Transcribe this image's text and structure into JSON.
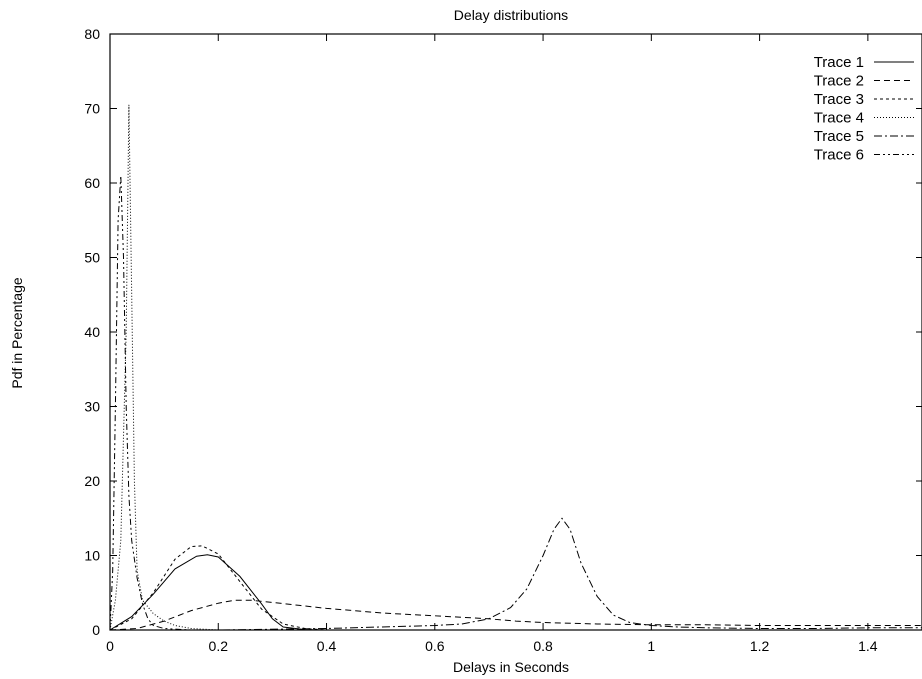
{
  "chart_data": {
    "type": "line",
    "title": "Delay distributions",
    "xlabel": "Delays in Seconds",
    "ylabel": "Pdf in Percentage",
    "xlim": [
      0,
      1.5
    ],
    "ylim": [
      0,
      80
    ],
    "x_ticks": [
      0,
      0.2,
      0.4,
      0.6,
      0.8,
      1,
      1.2,
      1.4
    ],
    "x_tick_labels": [
      "0",
      "0.2",
      "0.4",
      "0.6",
      "0.8",
      "1",
      "1.2",
      "1.4"
    ],
    "y_ticks": [
      0,
      10,
      20,
      30,
      40,
      50,
      60,
      70,
      80
    ],
    "y_tick_labels": [
      "0",
      "10",
      "20",
      "30",
      "40",
      "50",
      "60",
      "70",
      "80"
    ],
    "grid": false,
    "legend_position": "top-right",
    "series": [
      {
        "name": "Trace 1",
        "dash": "none",
        "x": [
          0,
          0.04,
          0.08,
          0.12,
          0.16,
          0.18,
          0.2,
          0.24,
          0.28,
          0.3,
          0.32,
          0.36,
          0.4,
          1.5
        ],
        "y": [
          0,
          1.8,
          4.8,
          8.2,
          9.9,
          10.1,
          9.8,
          7.2,
          3.5,
          1.5,
          0.4,
          0.05,
          0,
          0
        ]
      },
      {
        "name": "Trace 2",
        "dash": "6,4",
        "x": [
          0,
          0.05,
          0.1,
          0.15,
          0.2,
          0.23,
          0.26,
          0.3,
          0.35,
          0.4,
          0.45,
          0.5,
          0.55,
          0.6,
          0.65,
          0.7,
          0.75,
          0.8,
          0.9,
          1.0,
          1.1,
          1.2,
          1.3,
          1.4,
          1.5
        ],
        "y": [
          0,
          0.2,
          1.2,
          2.6,
          3.6,
          4.0,
          4.0,
          3.7,
          3.3,
          2.9,
          2.6,
          2.3,
          2.1,
          1.9,
          1.7,
          1.5,
          1.2,
          1.0,
          0.8,
          0.7,
          0.7,
          0.6,
          0.6,
          0.6,
          0.6
        ]
      },
      {
        "name": "Trace 3",
        "dash": "3,3",
        "x": [
          0,
          0.04,
          0.08,
          0.12,
          0.15,
          0.17,
          0.2,
          0.24,
          0.28,
          0.32,
          0.36,
          0.4,
          1.5
        ],
        "y": [
          0,
          1.5,
          5.0,
          9.5,
          11.2,
          11.3,
          10.2,
          6.5,
          2.8,
          0.8,
          0.2,
          0,
          0
        ]
      },
      {
        "name": "Trace 4",
        "dash": "1,2",
        "x": [
          0,
          0.01,
          0.02,
          0.03,
          0.035,
          0.04,
          0.045,
          0.05,
          0.06,
          0.08,
          0.1,
          0.12,
          0.15,
          0.2,
          1.5
        ],
        "y": [
          0,
          4,
          12,
          40,
          70.5,
          45,
          20,
          8,
          4,
          2.2,
          1.2,
          0.6,
          0.2,
          0,
          0
        ]
      },
      {
        "name": "Trace 5",
        "dash": "8,3,2,3",
        "x": [
          0,
          0.2,
          0.4,
          0.5,
          0.6,
          0.65,
          0.7,
          0.74,
          0.77,
          0.8,
          0.82,
          0.835,
          0.85,
          0.87,
          0.9,
          0.93,
          0.96,
          1.0,
          1.05,
          1.1,
          1.2,
          1.3,
          1.4,
          1.5
        ],
        "y": [
          0,
          0,
          0.2,
          0.4,
          0.6,
          0.8,
          1.5,
          3.0,
          5.5,
          10.0,
          13.5,
          15.0,
          13.5,
          9.0,
          4.5,
          2.0,
          1.0,
          0.6,
          0.4,
          0.3,
          0.2,
          0.2,
          0.3,
          0.3
        ]
      },
      {
        "name": "Trace 6",
        "dash": "6,3,2,3,2,3",
        "x": [
          0,
          0.005,
          0.01,
          0.015,
          0.02,
          0.025,
          0.03,
          0.035,
          0.04,
          0.05,
          0.06,
          0.07,
          0.08,
          0.1,
          0.15,
          1.5
        ],
        "y": [
          0,
          8,
          30,
          55,
          61,
          50,
          30,
          18,
          12,
          7,
          3.5,
          1.5,
          0.6,
          0.2,
          0,
          0
        ]
      }
    ]
  }
}
